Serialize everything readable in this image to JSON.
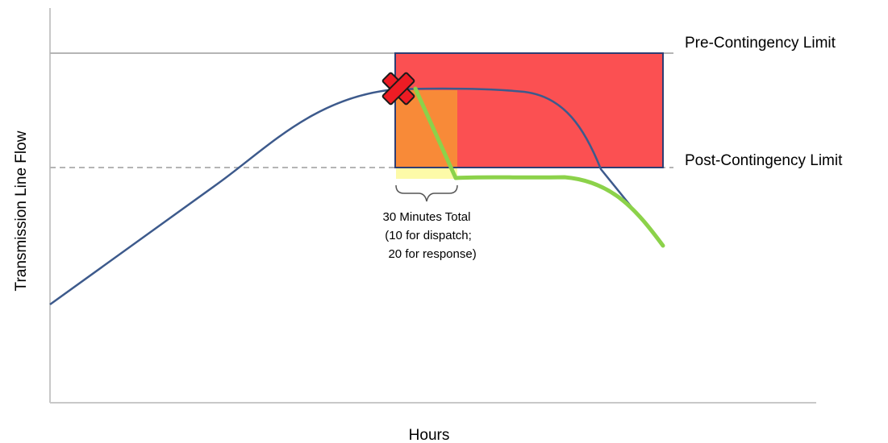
{
  "labels": {
    "pre_contingency": "Pre-Contingency Limit",
    "post_contingency": "Post-Contingency Limit",
    "x_axis": "Hours",
    "y_axis": "Transmission Line Flow",
    "window_line1": "30 Minutes Total",
    "window_line2": "(10 for dispatch;",
    "window_line3": " 20 for response)"
  },
  "colors": {
    "axis": "#c8c8c8",
    "limit_line": "#b5b5b5",
    "flow_curve": "#3d5a8c",
    "response_curve": "#8cd24a",
    "violation_box": "#fb5052",
    "violation_border": "#2e3e73",
    "dispatch_zone": "#f88a38",
    "response_band": "#fdfaa8",
    "contingency_marker": "#ed1c24"
  },
  "icons": {
    "contingency_marker": "x-mark-icon"
  }
}
